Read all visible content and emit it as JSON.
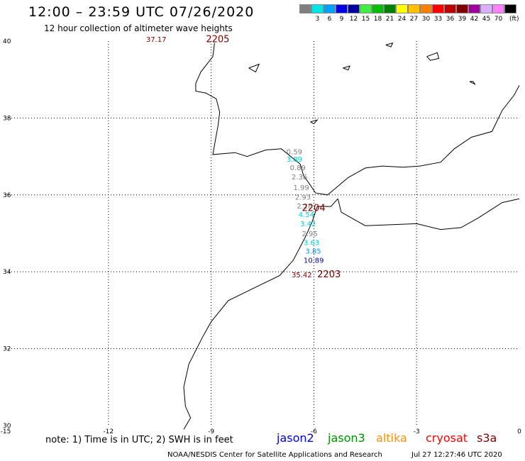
{
  "header": {
    "title": "12:00 – 23:59 UTC 07/26/2020",
    "subtitle": "12 hour collection of altimeter wave heights"
  },
  "color_scale": {
    "unit": "(ft)",
    "swatches": [
      {
        "color": "#7f7f7f",
        "label": ""
      },
      {
        "color": "#00e5e5",
        "label": "3"
      },
      {
        "color": "#00a0ff",
        "label": "6"
      },
      {
        "color": "#0000e0",
        "label": "9"
      },
      {
        "color": "#0000a0",
        "label": "12"
      },
      {
        "color": "#40f040",
        "label": "15"
      },
      {
        "color": "#00c000",
        "label": "18"
      },
      {
        "color": "#008000",
        "label": "21"
      },
      {
        "color": "#ffff00",
        "label": "24"
      },
      {
        "color": "#ffc000",
        "label": "27"
      },
      {
        "color": "#ff8000",
        "label": "30"
      },
      {
        "color": "#ff0000",
        "label": "33"
      },
      {
        "color": "#c00000",
        "label": "36"
      },
      {
        "color": "#800000",
        "label": "39"
      },
      {
        "color": "#a000a0",
        "label": "42"
      },
      {
        "color": "#d8b0ff",
        "label": "45"
      },
      {
        "color": "#ff80ff",
        "label": "70"
      },
      {
        "color": "#000000",
        "label": ""
      }
    ]
  },
  "map": {
    "lon_range": [
      -15,
      0
    ],
    "lat_range": [
      30,
      40
    ],
    "x_ticks": [
      "-15",
      "-12",
      "-9",
      "-6",
      "-3",
      "0"
    ],
    "y_ticks": [
      "40",
      "38",
      "36",
      "34",
      "32",
      "30"
    ],
    "wave_heights": [
      {
        "text": "37.17",
        "lon": -10.9,
        "lat": 39.98,
        "color": "#800000"
      },
      {
        "text": "0.59",
        "lon": -6.8,
        "lat": 37.06,
        "color": "#7f7f7f"
      },
      {
        "text": "3.89",
        "lon": -6.8,
        "lat": 36.86,
        "color": "#00d0d0"
      },
      {
        "text": "0.89",
        "lon": -6.7,
        "lat": 36.64,
        "color": "#7f7f7f"
      },
      {
        "text": "2.36",
        "lon": -6.65,
        "lat": 36.4,
        "color": "#7f7f7f"
      },
      {
        "text": "1.99",
        "lon": -6.6,
        "lat": 36.13,
        "color": "#7f7f7f"
      },
      {
        "text": "2.93",
        "lon": -6.55,
        "lat": 35.88,
        "color": "#7f7f7f"
      },
      {
        "text": "2.28",
        "lon": -6.5,
        "lat": 35.65,
        "color": "#7f7f7f"
      },
      {
        "text": "4.54",
        "lon": -6.45,
        "lat": 35.42,
        "color": "#00d0d0"
      },
      {
        "text": "3.42",
        "lon": -6.4,
        "lat": 35.18,
        "color": "#00d0d0"
      },
      {
        "text": "2.95",
        "lon": -6.35,
        "lat": 34.93,
        "color": "#7f7f7f"
      },
      {
        "text": "3.63",
        "lon": -6.3,
        "lat": 34.7,
        "color": "#00d0d0"
      },
      {
        "text": "3.85",
        "lon": -6.25,
        "lat": 34.47,
        "color": "#0090ff"
      },
      {
        "text": "10.89",
        "lon": -6.3,
        "lat": 34.23,
        "color": "#0000c0"
      },
      {
        "text": "35.42",
        "lon": -6.65,
        "lat": 33.86,
        "color": "#800000"
      }
    ],
    "pass_times": [
      {
        "text": "2205",
        "lon": -9.15,
        "lat": 39.97,
        "color": "#800000"
      },
      {
        "text": "2204",
        "lon": -6.35,
        "lat": 35.58,
        "color": "#800000"
      },
      {
        "text": "2203",
        "lon": -5.9,
        "lat": 33.86,
        "color": "#800000"
      }
    ]
  },
  "footer": {
    "note": "note: 1) Time is in UTC; 2) SWH is in feet",
    "satellites": [
      {
        "name": "jason2",
        "color": "#0000e0"
      },
      {
        "name": "jason3",
        "color": "#009000"
      },
      {
        "name": "altika",
        "color": "#ff9000"
      },
      {
        "name": "cryosat",
        "color": "#ff0000"
      },
      {
        "name": "s3a",
        "color": "#800000"
      }
    ],
    "credit": "NOAA/NESDIS Center for Satellite Applications and Research",
    "timestamp": "Jul 27 12:27:46 UTC 2020"
  }
}
